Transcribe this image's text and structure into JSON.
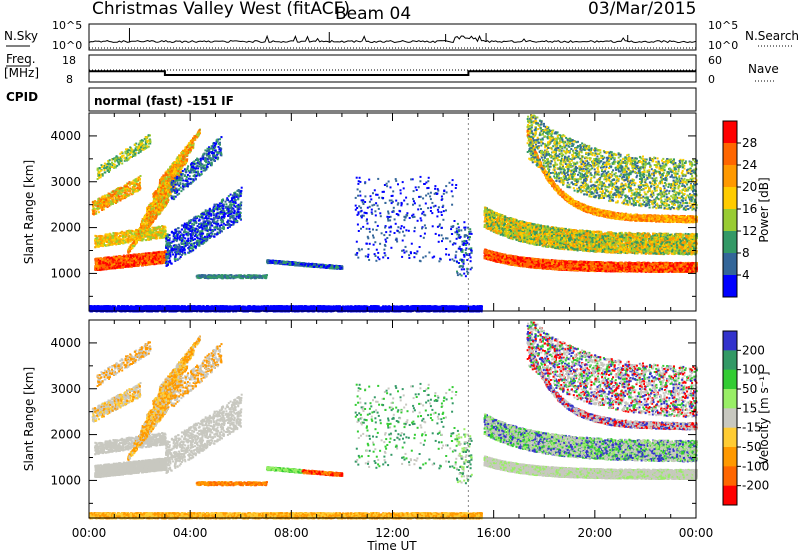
{
  "header": {
    "title": "Christmas Valley West (fitACF)",
    "beam": "Beam 04",
    "date": "03/Mar/2015"
  },
  "panels": {
    "nsky_label": "N.Sky",
    "nsearch_label": "N.Search",
    "noise_ticks": [
      "10^5",
      "10^0"
    ],
    "freq_label_1": "Freq.",
    "freq_label_2": "[MHz]",
    "freq_ticks": [
      "18",
      "8"
    ],
    "nave_label": "Nave",
    "nave_ticks": [
      "60",
      "0"
    ],
    "cpid_label": "CPID",
    "cpid_text": "normal (fast) -151 IF"
  },
  "colorbars": {
    "power": {
      "label": "Power [dB]",
      "ticks": [
        "28",
        "24",
        "20",
        "16",
        "12",
        "8",
        "4"
      ],
      "colors": [
        "#ff0000",
        "#ff6600",
        "#ff9900",
        "#ffcc00",
        "#99cc33",
        "#339966",
        "#336699",
        "#0000ff"
      ]
    },
    "velocity": {
      "label": "Velocity [m s⁻¹]",
      "ticks": [
        "200",
        "100",
        "50",
        "15",
        "-15",
        "-50",
        "-100",
        "-200"
      ],
      "colors": [
        "#3333cc",
        "#339966",
        "#33cc33",
        "#99ee66",
        "#c8c8c0",
        "#ffcc33",
        "#ff9900",
        "#ff6600",
        "#ff0000"
      ]
    }
  },
  "chart_data": [
    {
      "type": "line",
      "name": "noise",
      "description_series": [
        "N.Sky",
        "N.Search"
      ],
      "x_range": [
        "00:00",
        "24:00"
      ],
      "yscale": "log",
      "y_ticks": [
        "10^0",
        "10^5"
      ]
    },
    {
      "type": "line",
      "name": "frequency and nave",
      "series": [
        {
          "name": "Freq. [MHz]",
          "x_hours": [
            0,
            3,
            3,
            15,
            15,
            24
          ],
          "values": [
            12,
            12,
            10.6,
            10.6,
            12,
            12
          ]
        },
        {
          "name": "Nave",
          "x_hours": [
            0,
            24
          ],
          "values": [
            0,
            0
          ]
        }
      ],
      "ylim_freq": [
        8,
        18
      ],
      "ylim_nave": [
        0,
        60
      ]
    },
    {
      "type": "heatmap",
      "name": "power",
      "xlabel": "",
      "ylabel": "Slant Range [km]",
      "x_ticks": [
        "00:00",
        "04:00",
        "08:00",
        "12:00",
        "16:00",
        "20:00",
        "00:00"
      ],
      "y_ticks": [
        1000,
        2000,
        3000,
        4000
      ],
      "ylim": [
        180,
        4500
      ],
      "colorbar_label": "Power [dB]",
      "colorbar_range": [
        0,
        30
      ]
    },
    {
      "type": "heatmap",
      "name": "velocity",
      "xlabel": "Time UT",
      "ylabel": "Slant Range [km]",
      "x_ticks": [
        "00:00",
        "04:00",
        "08:00",
        "12:00",
        "16:00",
        "20:00",
        "00:00"
      ],
      "y_ticks": [
        1000,
        2000,
        3000,
        4000
      ],
      "ylim": [
        180,
        4500
      ],
      "colorbar_label": "Velocity [m s⁻¹]",
      "colorbar_range": [
        -250,
        250
      ]
    }
  ]
}
